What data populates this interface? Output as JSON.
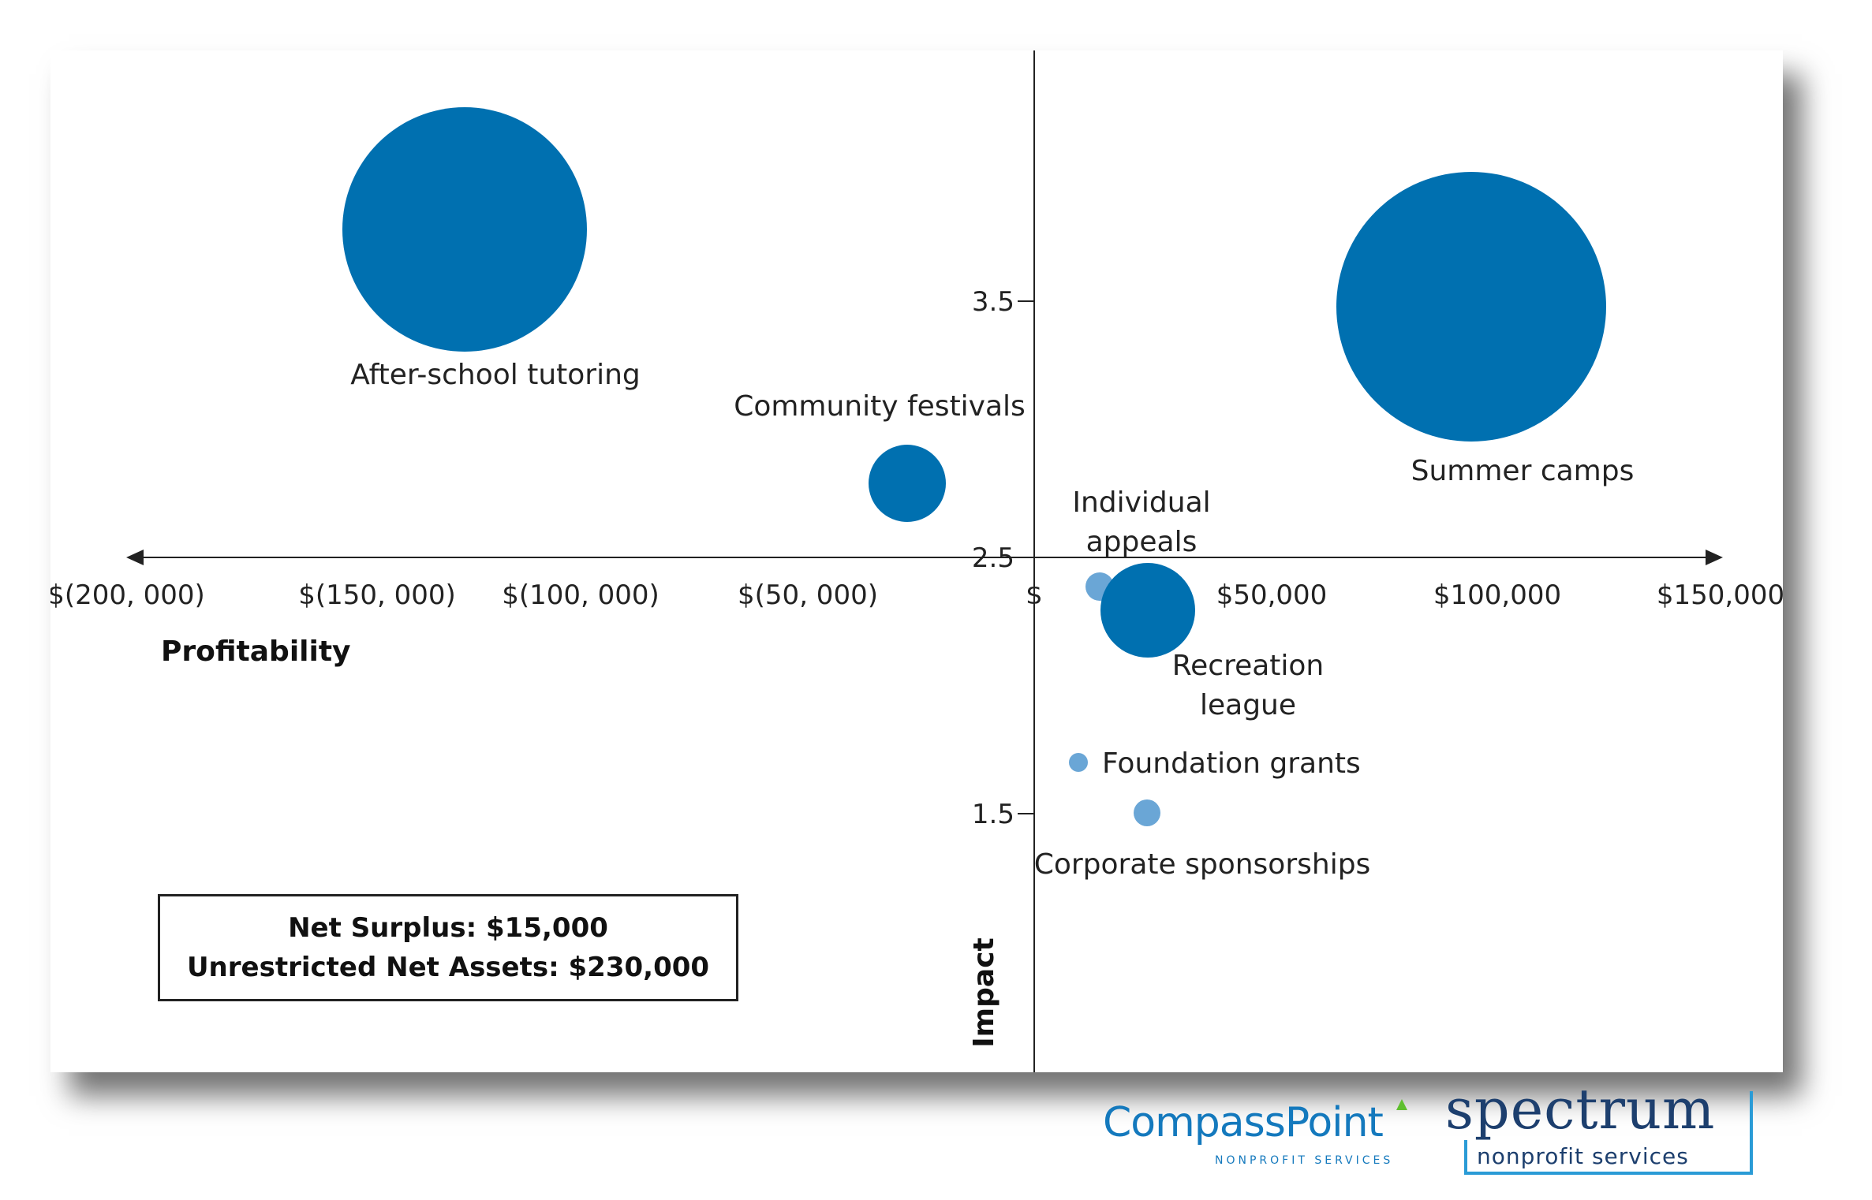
{
  "chart_data": {
    "type": "bubble",
    "xlabel": "Profitability",
    "ylabel": "Impact",
    "xlim": [
      -200000,
      150000
    ],
    "x_ticks": [
      {
        "value": -200000,
        "label": "$(200, 000)"
      },
      {
        "value": -150000,
        "label": "$(150, 000)"
      },
      {
        "value": -100000,
        "label": "$(100, 000)"
      },
      {
        "value": -50000,
        "label": "$(50, 000)"
      },
      {
        "value": 0,
        "label": "$"
      },
      {
        "value": 50000,
        "label": "$50,000"
      },
      {
        "value": 100000,
        "label": "$100,000"
      },
      {
        "value": 150000,
        "label": "$150,000"
      }
    ],
    "y_ticks": [
      {
        "value": 2.5,
        "label": "2.5"
      },
      {
        "value": 3.5,
        "label": "3.5"
      },
      {
        "value": 1.5,
        "label": "1.5"
      }
    ],
    "grid": false,
    "colors": {
      "large": "#0070b0",
      "small": "#6aa6d6",
      "axis": "#222222"
    },
    "points": [
      {
        "label": "After-school tutoring",
        "x": -125000,
        "y": 3.8,
        "size": 100,
        "color": "#0070b0"
      },
      {
        "label": "Summer camps",
        "x": 95000,
        "y": 3.5,
        "size": 110,
        "color": "#0070b0"
      },
      {
        "label": "Community festivals",
        "x": -28000,
        "y": 2.8,
        "size": 32,
        "color": "#0070b0"
      },
      {
        "label": "Individual appeals",
        "x": 15000,
        "y": 2.4,
        "size": 12,
        "color": "#6aa6d6"
      },
      {
        "label": "Recreation league",
        "x": 25000,
        "y": 2.3,
        "size": 38,
        "color": "#0070b0"
      },
      {
        "label": "Foundation grants",
        "x": 10000,
        "y": 1.7,
        "size": 8,
        "color": "#6aa6d6"
      },
      {
        "label": "Corporate sponsorships",
        "x": 25000,
        "y": 1.5,
        "size": 11,
        "color": "#6aa6d6"
      }
    ]
  },
  "summary": {
    "net_surplus": "Net Surplus: $15,000",
    "unrestricted_net_assets": "Unrestricted Net Assets: $230,000"
  },
  "logos": {
    "compasspoint_name": "CompassPoint",
    "compasspoint_sub": "NONPROFIT SERVICES",
    "spectrum_name": "spectrum",
    "spectrum_sub": "nonprofit services"
  }
}
